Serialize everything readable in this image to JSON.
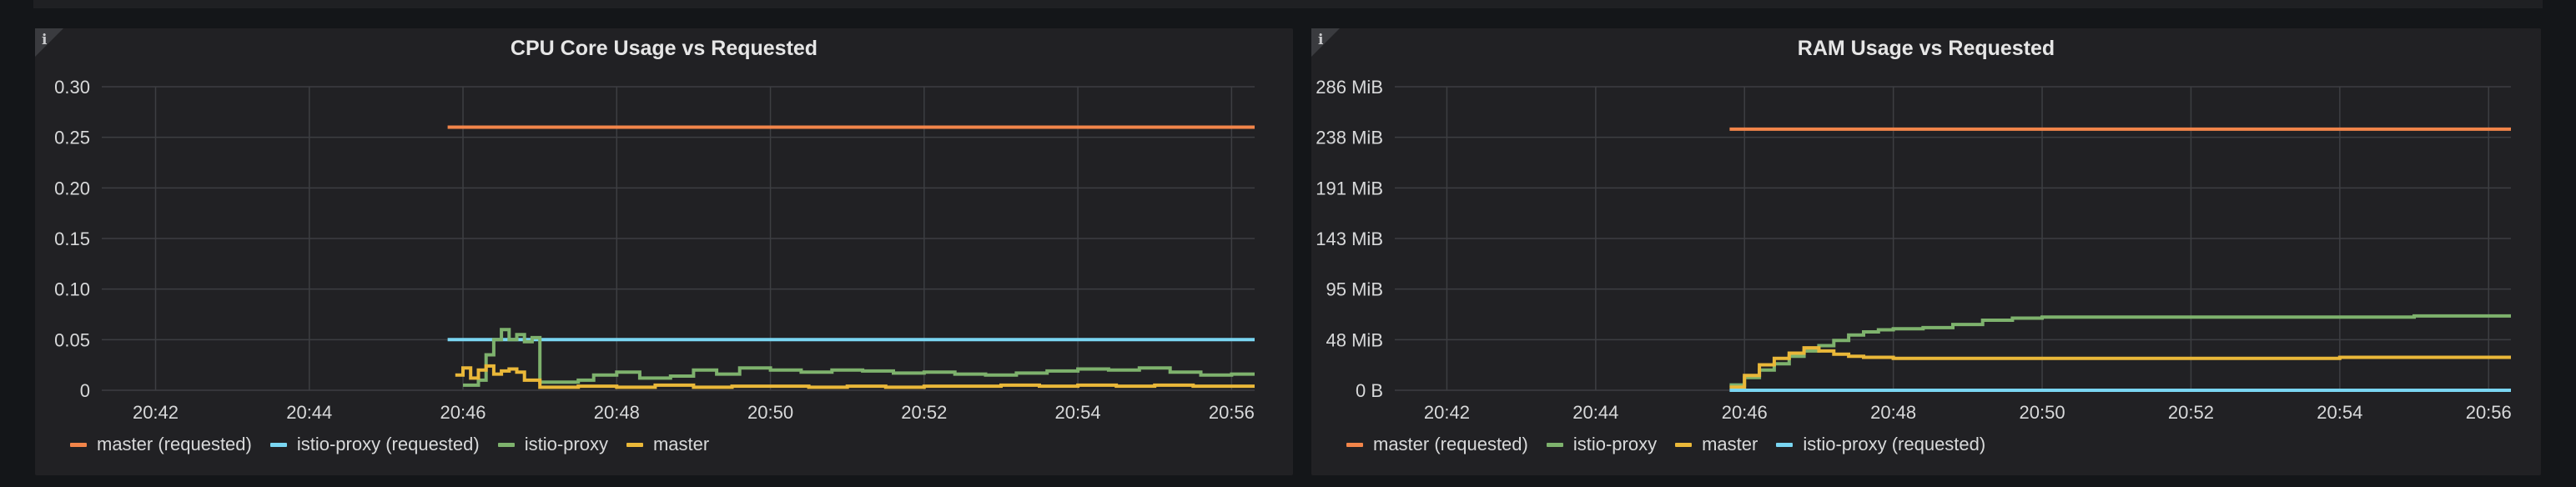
{
  "colors": {
    "orange": "#f2854a",
    "cyan": "#7ad6f2",
    "green": "#7eb26d",
    "yellow": "#eab839",
    "grid": "#3d3e42",
    "tick": "#d8d9da"
  },
  "chart_data": [
    {
      "type": "line",
      "title": "CPU Core Usage vs Requested",
      "y_ticks": [
        "0.30",
        "0.25",
        "0.20",
        "0.15",
        "0.10",
        "0.05",
        "0"
      ],
      "ylim": [
        0,
        0.3
      ],
      "x_ticks": [
        "20:42",
        "20:44",
        "20:46",
        "20:48",
        "20:50",
        "20:52",
        "20:54",
        "20:56"
      ],
      "x_range_minutes": [
        41.3,
        56.3
      ],
      "grid": true,
      "legend_position": "bottom-left",
      "legend": [
        {
          "name": "master (requested)",
          "color": "#f2854a"
        },
        {
          "name": "istio-proxy (requested)",
          "color": "#7ad6f2"
        },
        {
          "name": "istio-proxy",
          "color": "#7eb26d"
        },
        {
          "name": "master",
          "color": "#eab839"
        }
      ],
      "series": [
        {
          "name": "master (requested)",
          "color": "#f2854a",
          "step": false,
          "x": [
            "20:45.8",
            "20:56.3"
          ],
          "values": [
            0.26,
            0.26
          ]
        },
        {
          "name": "istio-proxy (requested)",
          "color": "#7ad6f2",
          "step": false,
          "x": [
            "20:45.8",
            "20:56.3"
          ],
          "values": [
            0.05,
            0.05
          ]
        },
        {
          "name": "istio-proxy",
          "color": "#7eb26d",
          "step": true,
          "x": [
            "20:46.0",
            "20:46.2",
            "20:46.3",
            "20:46.4",
            "20:46.5",
            "20:46.6",
            "20:46.7",
            "20:46.8",
            "20:46.9",
            "20:47.0",
            "20:47.2",
            "20:47.5",
            "20:47.7",
            "20:48.0",
            "20:48.3",
            "20:48.7",
            "20:49.0",
            "20:49.3",
            "20:49.6",
            "20:50.0",
            "20:50.4",
            "20:50.8",
            "20:51.2",
            "20:51.6",
            "20:52.0",
            "20:52.4",
            "20:52.8",
            "20:53.2",
            "20:53.6",
            "20:54.0",
            "20:54.4",
            "20:54.8",
            "20:55.2",
            "20:55.6",
            "20:56.0",
            "20:56.3"
          ],
          "values": [
            0.005,
            0.01,
            0.035,
            0.05,
            0.06,
            0.05,
            0.055,
            0.048,
            0.052,
            0.008,
            0.008,
            0.01,
            0.015,
            0.018,
            0.012,
            0.014,
            0.02,
            0.016,
            0.022,
            0.02,
            0.018,
            0.02,
            0.019,
            0.017,
            0.018,
            0.016,
            0.015,
            0.017,
            0.019,
            0.021,
            0.02,
            0.022,
            0.018,
            0.015,
            0.016,
            0.016
          ]
        },
        {
          "name": "master",
          "color": "#eab839",
          "step": true,
          "x": [
            "20:45.9",
            "20:46.0",
            "20:46.1",
            "20:46.2",
            "20:46.3",
            "20:46.4",
            "20:46.5",
            "20:46.6",
            "20:46.7",
            "20:46.8",
            "20:47.0",
            "20:47.5",
            "20:48.0",
            "20:48.5",
            "20:49.0",
            "20:49.5",
            "20:50.0",
            "20:50.5",
            "20:51.0",
            "20:51.5",
            "20:52.0",
            "20:52.5",
            "20:53.0",
            "20:53.5",
            "20:54.0",
            "20:54.5",
            "20:55.0",
            "20:55.5",
            "20:56.0",
            "20:56.3"
          ],
          "values": [
            0.015,
            0.022,
            0.012,
            0.02,
            0.024,
            0.016,
            0.019,
            0.021,
            0.018,
            0.01,
            0.003,
            0.004,
            0.003,
            0.005,
            0.003,
            0.004,
            0.004,
            0.003,
            0.004,
            0.003,
            0.004,
            0.004,
            0.005,
            0.004,
            0.005,
            0.004,
            0.005,
            0.004,
            0.004,
            0.004
          ]
        }
      ]
    },
    {
      "type": "line",
      "title": "RAM Usage vs Requested",
      "y_ticks": [
        "286 MiB",
        "238 MiB",
        "191 MiB",
        "143 MiB",
        "95 MiB",
        "48 MiB",
        "0 B"
      ],
      "ylim": [
        0,
        286
      ],
      "y_unit": "MiB",
      "x_ticks": [
        "20:42",
        "20:44",
        "20:46",
        "20:48",
        "20:50",
        "20:52",
        "20:54",
        "20:56"
      ],
      "x_range_minutes": [
        41.3,
        56.3
      ],
      "grid": true,
      "legend_position": "bottom-left",
      "legend": [
        {
          "name": "master (requested)",
          "color": "#f2854a"
        },
        {
          "name": "istio-proxy",
          "color": "#7eb26d"
        },
        {
          "name": "master",
          "color": "#eab839"
        },
        {
          "name": "istio-proxy (requested)",
          "color": "#7ad6f2"
        }
      ],
      "series": [
        {
          "name": "master (requested)",
          "color": "#f2854a",
          "step": false,
          "x": [
            "20:45.8",
            "20:56.3"
          ],
          "values": [
            246,
            246
          ]
        },
        {
          "name": "istio-proxy",
          "color": "#7eb26d",
          "step": true,
          "x": [
            "20:45.8",
            "20:46.0",
            "20:46.2",
            "20:46.4",
            "20:46.6",
            "20:46.8",
            "20:47.0",
            "20:47.2",
            "20:47.4",
            "20:47.6",
            "20:47.8",
            "20:48.0",
            "20:48.4",
            "20:48.8",
            "20:49.2",
            "20:49.6",
            "20:50.0",
            "20:50.5",
            "20:51.0",
            "20:52.0",
            "20:53.0",
            "20:54.0",
            "20:55.0",
            "20:56.0",
            "20:56.3"
          ],
          "values": [
            5,
            12,
            19,
            25,
            32,
            37,
            42,
            47,
            52,
            55,
            57,
            58,
            59,
            62,
            66,
            68,
            69,
            69,
            69,
            69,
            69,
            69,
            70,
            70,
            70
          ]
        },
        {
          "name": "master",
          "color": "#eab839",
          "step": true,
          "x": [
            "20:45.8",
            "20:46.0",
            "20:46.2",
            "20:46.4",
            "20:46.6",
            "20:46.8",
            "20:47.0",
            "20:47.2",
            "20:47.4",
            "20:47.6",
            "20:48.0",
            "20:48.5",
            "20:49.0",
            "20:50.0",
            "20:51.0",
            "20:52.0",
            "20:53.0",
            "20:54.0",
            "20:55.0",
            "20:56.0",
            "20:56.3"
          ],
          "values": [
            3,
            14,
            24,
            30,
            35,
            40,
            37,
            34,
            32,
            31,
            30,
            30,
            30,
            30,
            30,
            30,
            30,
            31,
            31,
            31,
            31
          ]
        },
        {
          "name": "istio-proxy (requested)",
          "color": "#7ad6f2",
          "step": false,
          "x": [
            "20:45.8",
            "20:56.3"
          ],
          "values": [
            0,
            0
          ]
        }
      ]
    }
  ]
}
